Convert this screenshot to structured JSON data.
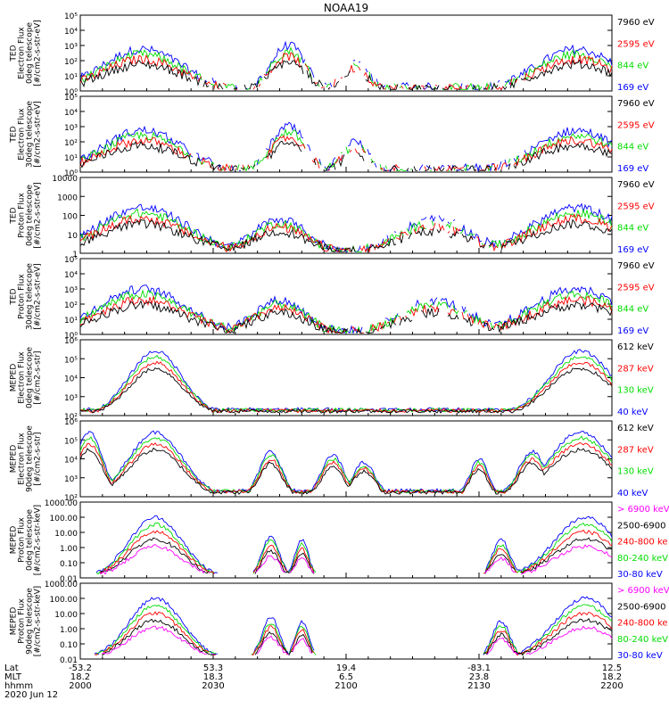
{
  "title": "NOAA19",
  "date_label": "2020 Jun 12",
  "x_axis": {
    "row_labels": [
      "Lat",
      "MLT",
      "hhmm"
    ],
    "ticks": [
      {
        "lat": "-53.2",
        "mlt": "18.2",
        "hhmm": "2000"
      },
      {
        "lat": "53.3",
        "mlt": "18.3",
        "hhmm": "2030"
      },
      {
        "lat": "19.4",
        "mlt": "6.5",
        "hhmm": "2100"
      },
      {
        "lat": "-83.1",
        "mlt": "23.8",
        "hhmm": "2130"
      },
      {
        "lat": "12.5",
        "mlt": "18.2",
        "hhmm": "2200"
      }
    ]
  },
  "colors": {
    "black": "#000000",
    "red": "#ff0000",
    "green": "#00dd00",
    "blue": "#0000ff",
    "magenta": "#ff00ff"
  },
  "chart_data": [
    {
      "type": "line",
      "ylabel": "TED\nElectron Flux\n0deg telescope\n[#/cm2-s-str-eV]",
      "log": true,
      "ylim": [
        1,
        100000
      ],
      "yticks": [
        "10⁰",
        "10¹",
        "10²",
        "10³",
        "10⁴",
        "10⁵"
      ],
      "legend": [
        {
          "text": "7960 eV",
          "color": "black"
        },
        {
          "text": "2595 eV",
          "color": "red"
        },
        {
          "text": "844 eV",
          "color": "green"
        },
        {
          "text": "169 eV",
          "color": "blue"
        }
      ]
    },
    {
      "type": "line",
      "ylabel": "TED\nElectron Flux\n30deg telescope\n[#/cm2-s-str-eV]",
      "log": true,
      "ylim": [
        1,
        100000
      ],
      "yticks": [
        "10⁰",
        "10¹",
        "10²",
        "10³",
        "10⁴",
        "10⁵"
      ],
      "legend": [
        {
          "text": "7960 eV",
          "color": "black"
        },
        {
          "text": "2595 eV",
          "color": "red"
        },
        {
          "text": "844 eV",
          "color": "green"
        },
        {
          "text": "169 eV",
          "color": "blue"
        }
      ]
    },
    {
      "type": "line",
      "ylabel": "TED\nProton Flux\n0deg telescope\n[#/cm2-s-str-eV]",
      "log": true,
      "ylim": [
        1,
        10000
      ],
      "yticks": [
        "1",
        "10",
        "100",
        "1000",
        "10000"
      ],
      "legend": [
        {
          "text": "7960 eV",
          "color": "black"
        },
        {
          "text": "2595 eV",
          "color": "red"
        },
        {
          "text": "844 eV",
          "color": "green"
        },
        {
          "text": "169 eV",
          "color": "blue"
        }
      ]
    },
    {
      "type": "line",
      "ylabel": "TED\nProton Flux\n30deg telescope\n[#/cm2-s-str-eV]",
      "log": true,
      "ylim": [
        1,
        100000
      ],
      "yticks": [
        "10⁰",
        "10¹",
        "10²",
        "10³",
        "10⁴",
        "10⁵"
      ],
      "legend": [
        {
          "text": "7960 eV",
          "color": "black"
        },
        {
          "text": "2595 eV",
          "color": "red"
        },
        {
          "text": "844 eV",
          "color": "green"
        },
        {
          "text": "169 eV",
          "color": "blue"
        }
      ]
    },
    {
      "type": "line",
      "ylabel": "MEPED\nElectron Flux\n0deg telescope\n[#/cm2-s-str]",
      "log": true,
      "ylim": [
        100,
        1000000
      ],
      "yticks": [
        "10²",
        "10³",
        "10⁴",
        "10⁵",
        "10⁶"
      ],
      "legend": [
        {
          "text": "612 keV",
          "color": "black"
        },
        {
          "text": "287 keV",
          "color": "red"
        },
        {
          "text": "130 keV",
          "color": "green"
        },
        {
          "text": "40 keV",
          "color": "blue"
        }
      ]
    },
    {
      "type": "line",
      "ylabel": "MEPED\nElectron Flux\n90deg telescope\n[#/cm2-s-str]",
      "log": true,
      "ylim": [
        100,
        1000000
      ],
      "yticks": [
        "10²",
        "10³",
        "10⁴",
        "10⁵",
        "10⁶"
      ],
      "legend": [
        {
          "text": "612 keV",
          "color": "black"
        },
        {
          "text": "287 keV",
          "color": "red"
        },
        {
          "text": "130 keV",
          "color": "green"
        },
        {
          "text": "40 keV",
          "color": "blue"
        }
      ]
    },
    {
      "type": "line",
      "ylabel": "MEPED\nProton Flux\n0deg telescope\n[#/cm2-s-str-keV]",
      "log": true,
      "ylim": [
        0.01,
        1000
      ],
      "yticks": [
        "0.01",
        "0.10",
        "1.00",
        "10.00",
        "100.00",
        "1000.00"
      ],
      "legend": [
        {
          "text": "> 6900 keV",
          "color": "magenta"
        },
        {
          "text": "2500-6900",
          "color": "black"
        },
        {
          "text": "240-800 ke",
          "color": "red"
        },
        {
          "text": "80-240 keV",
          "color": "green"
        },
        {
          "text": "30-80 keV",
          "color": "blue"
        }
      ]
    },
    {
      "type": "line",
      "ylabel": "MEPED\nProton Flux\n90deg telescope\n[#/cm2-s-str-keV]",
      "log": true,
      "ylim": [
        0.01,
        1000
      ],
      "yticks": [
        "0.01",
        "0.10",
        "1.00",
        "10.00",
        "100.00",
        "1000.00"
      ],
      "legend": [
        {
          "text": "> 6900 keV",
          "color": "magenta"
        },
        {
          "text": "2500-6900",
          "color": "black"
        },
        {
          "text": "240-800 ke",
          "color": "red"
        },
        {
          "text": "80-240 keV",
          "color": "green"
        },
        {
          "text": "30-80 keV",
          "color": "blue"
        }
      ]
    }
  ]
}
